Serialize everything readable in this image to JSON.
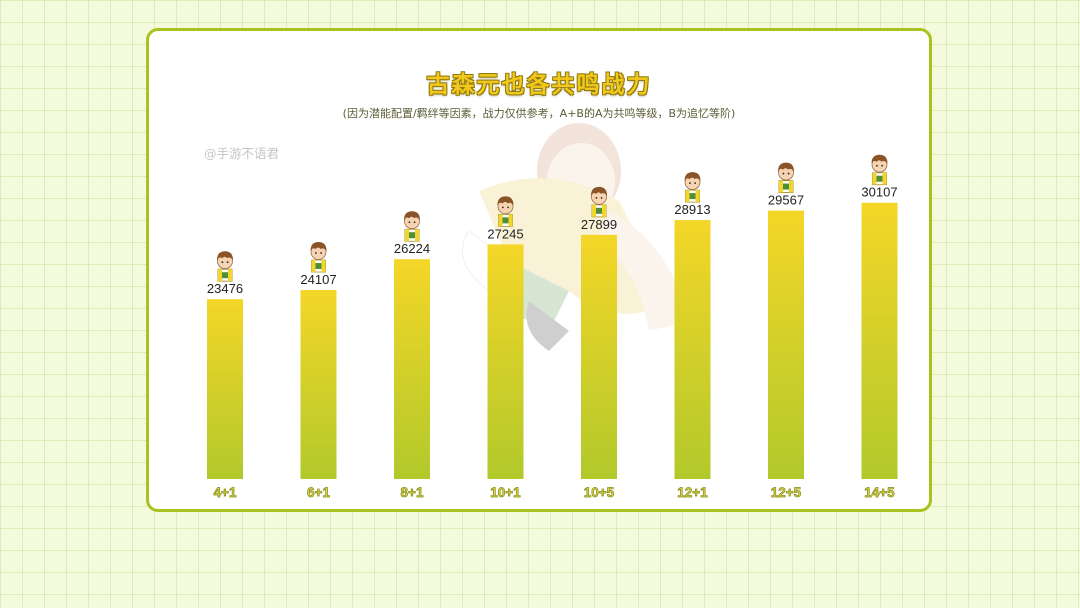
{
  "title": "古森元也各共鸣战力",
  "subtitle": "(因为潜能配置/羁绊等因素，战力仅供参考，A+B的A为共鸣等级，B为追忆等阶)",
  "watermark": "@手游不语君",
  "colors": {
    "border": "#a9c21f",
    "bar_top": "#f4d628",
    "bar_bottom": "#b2c92b",
    "title_fill": "#f2c81c",
    "tick_label_fill": "#e3d24a",
    "tick_label_stroke": "#7e8a12",
    "value_label": "#222222"
  },
  "icons": {
    "bar_top_figure": "chibi-character-icon",
    "background_art": "player-illustration"
  },
  "chart_data": {
    "type": "bar",
    "title": "古森元也各共鸣战力",
    "subtitle": "(因为潜能配置/羁绊等因素，战力仅供参考，A+B的A为共鸣等级，B为追忆等阶)",
    "categories": [
      "4+1",
      "6+1",
      "8+1",
      "10+1",
      "10+5",
      "12+1",
      "12+5",
      "14+5"
    ],
    "values": [
      23476,
      24107,
      26224,
      27245,
      27899,
      28913,
      29567,
      30107
    ],
    "xlabel": "",
    "ylabel": "",
    "ylim": [
      11120,
      30500
    ],
    "grid": false,
    "legend": "none",
    "data_labels": true,
    "y_axis_visible": false
  }
}
